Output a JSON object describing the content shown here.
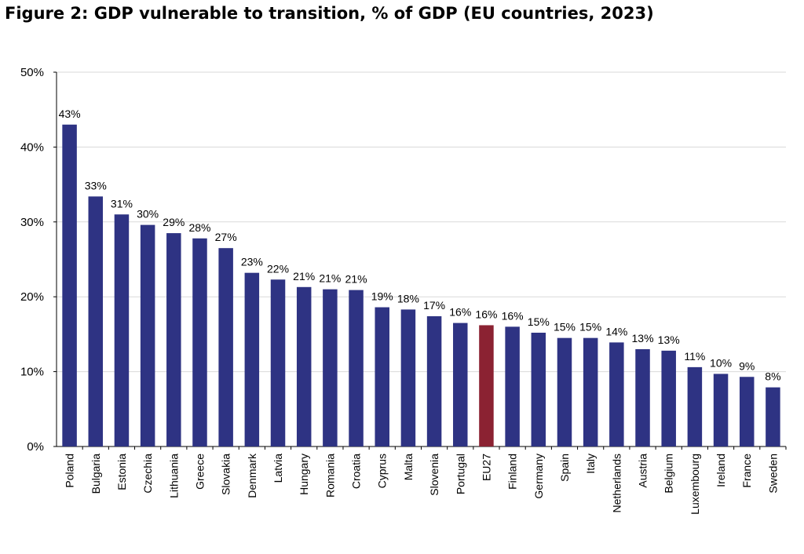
{
  "title": "Figure 2: GDP vulnerable to transition, % of GDP (EU countries, 2023)",
  "colors": {
    "bar": "#2e3383",
    "highlight": "#8b2232",
    "grid": "#d9d9d9",
    "axis": "#000000"
  },
  "chart_data": {
    "type": "bar",
    "title": "Figure 2: GDP vulnerable to transition, % of GDP (EU countries, 2023)",
    "xlabel": "",
    "ylabel": "",
    "ylim": [
      0,
      50
    ],
    "yticks": [
      "0%",
      "10%",
      "20%",
      "30%",
      "40%",
      "50%"
    ],
    "yticks_values": [
      0,
      10,
      20,
      30,
      40,
      50
    ],
    "grid": true,
    "highlight_category": "EU27",
    "categories": [
      "Poland",
      "Bulgaria",
      "Estonia",
      "Czechia",
      "Lithuania",
      "Greece",
      "Slovakia",
      "Denmark",
      "Latvia",
      "Hungary",
      "Romania",
      "Croatia",
      "Cyprus",
      "Malta",
      "Slovenia",
      "Portugal",
      "EU27",
      "Finland",
      "Germany",
      "Spain",
      "Italy",
      "Netherlands",
      "Austria",
      "Belgium",
      "Luxembourg",
      "Ireland",
      "France",
      "Sweden"
    ],
    "values": [
      43.0,
      33.4,
      31.0,
      29.6,
      28.5,
      27.8,
      26.5,
      23.2,
      22.3,
      21.3,
      21.0,
      20.9,
      18.6,
      18.3,
      17.4,
      16.5,
      16.2,
      16.0,
      15.2,
      14.5,
      14.5,
      13.9,
      13.0,
      12.8,
      10.6,
      9.7,
      9.3,
      7.9
    ],
    "labels": [
      "43%",
      "33%",
      "31%",
      "30%",
      "29%",
      "28%",
      "27%",
      "23%",
      "22%",
      "21%",
      "21%",
      "21%",
      "19%",
      "18%",
      "17%",
      "16%",
      "16%",
      "16%",
      "15%",
      "15%",
      "15%",
      "14%",
      "13%",
      "13%",
      "11%",
      "10%",
      "9%",
      "8%"
    ]
  }
}
